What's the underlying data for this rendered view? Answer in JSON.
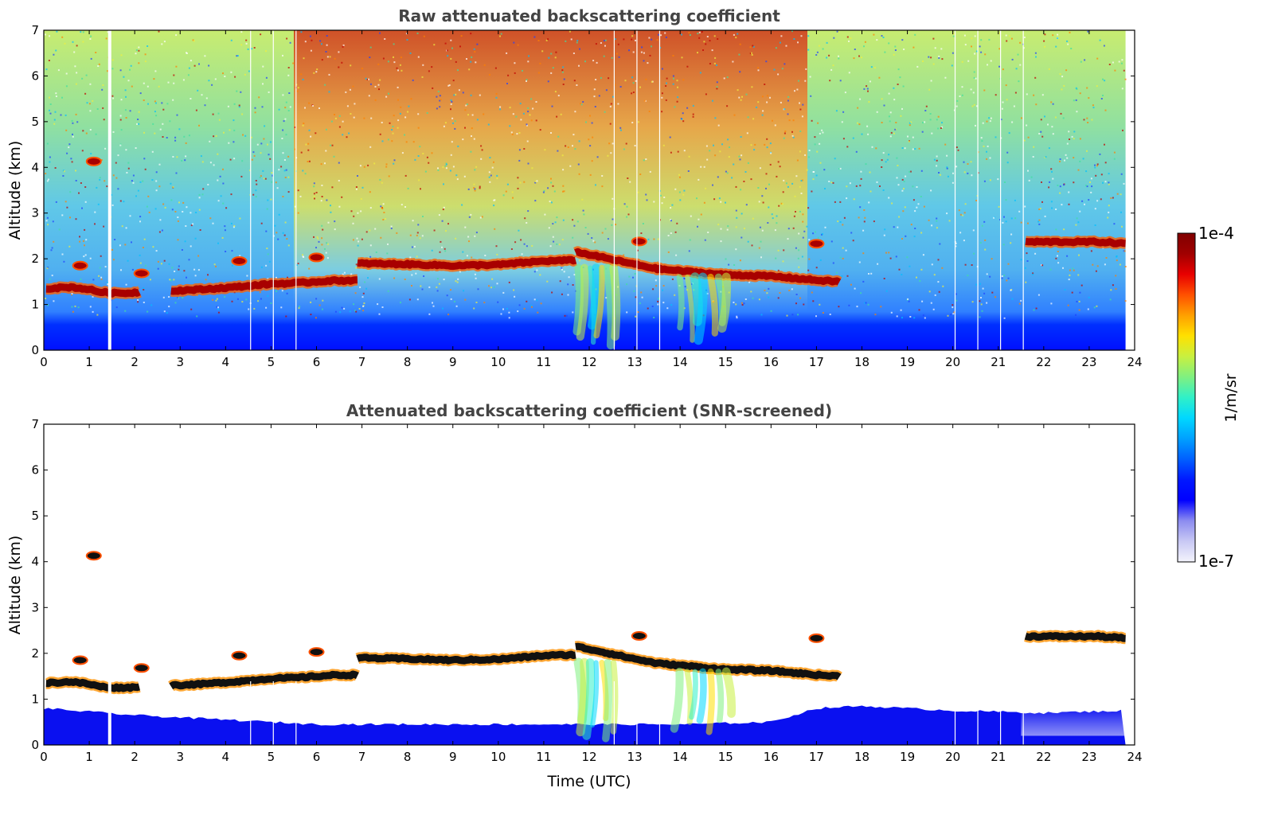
{
  "chart_data": [
    {
      "type": "heatmap",
      "title": "Raw attenuated backscattering coefficient",
      "xlabel": "",
      "ylabel": "Altitude (km)",
      "xlim": [
        0,
        24
      ],
      "ylim": [
        0,
        7
      ],
      "x_ticks": [
        "0",
        "1",
        "2",
        "3",
        "4",
        "5",
        "6",
        "7",
        "8",
        "9",
        "10",
        "11",
        "12",
        "13",
        "14",
        "15",
        "16",
        "17",
        "18",
        "19",
        "20",
        "21",
        "22",
        "23",
        "24"
      ],
      "y_ticks": [
        "0",
        "1",
        "2",
        "3",
        "4",
        "5",
        "6",
        "7"
      ],
      "data_gaps_hours": [
        1.45,
        4.55,
        5.05,
        5.55,
        12.55,
        13.05,
        13.55,
        20.05,
        20.55,
        21.05,
        21.55
      ],
      "cloud_layers": [
        {
          "x": [
            0.05,
            0.6,
            1.0,
            1.2,
            1.5,
            1.85,
            2.1
          ],
          "y": [
            1.35,
            1.38,
            1.33,
            1.28,
            1.25,
            1.25,
            1.27
          ]
        },
        {
          "x": [
            2.8,
            3.5,
            4.2,
            5.0,
            5.6,
            6.3,
            6.9
          ],
          "y": [
            1.3,
            1.33,
            1.38,
            1.45,
            1.47,
            1.52,
            1.53
          ]
        },
        {
          "x": [
            6.9,
            8.0,
            9.0,
            10.0,
            11.0,
            11.7
          ],
          "y": [
            1.9,
            1.88,
            1.85,
            1.87,
            1.95,
            1.97
          ]
        },
        {
          "x": [
            11.7,
            12.2,
            12.8,
            13.5,
            14.2,
            15.0,
            16.0,
            17.0,
            17.5
          ],
          "y": [
            2.15,
            2.05,
            1.92,
            1.78,
            1.72,
            1.65,
            1.62,
            1.53,
            1.5
          ]
        },
        {
          "x": [
            21.6,
            22.5,
            23.2,
            23.8
          ],
          "y": [
            2.37,
            2.37,
            2.37,
            2.33
          ]
        }
      ],
      "isolated_clouds": [
        {
          "x": 1.1,
          "y": 4.13
        },
        {
          "x": 0.8,
          "y": 1.85
        },
        {
          "x": 2.15,
          "y": 1.68
        },
        {
          "x": 4.3,
          "y": 1.95
        },
        {
          "x": 6.0,
          "y": 2.03
        },
        {
          "x": 13.1,
          "y": 2.38
        },
        {
          "x": 17.0,
          "y": 2.33
        }
      ],
      "precipitation_fallstreaks": [
        {
          "x_start": 11.7,
          "x_end": 12.6,
          "top": 1.8,
          "bottom": 0.1
        },
        {
          "x_start": 13.9,
          "x_end": 15.1,
          "top": 1.6,
          "bottom": 0.2
        }
      ],
      "colorscale": {
        "min": "1e-7",
        "max": "1e-4",
        "label": "1/m/sr",
        "log": true
      }
    },
    {
      "type": "heatmap",
      "title": "Attenuated backscattering coefficient (SNR-screened)",
      "xlabel": "Time (UTC)",
      "ylabel": "Altitude (km)",
      "xlim": [
        0,
        24
      ],
      "ylim": [
        0,
        7
      ],
      "x_ticks": [
        "0",
        "1",
        "2",
        "3",
        "4",
        "5",
        "6",
        "7",
        "8",
        "9",
        "10",
        "11",
        "12",
        "13",
        "14",
        "15",
        "16",
        "17",
        "18",
        "19",
        "20",
        "21",
        "22",
        "23",
        "24"
      ],
      "y_ticks": [
        "0",
        "1",
        "2",
        "3",
        "4",
        "5",
        "6",
        "7"
      ],
      "boundary_layer_top_km": {
        "x": [
          0,
          2,
          4,
          6,
          8,
          10,
          12,
          14,
          16,
          17,
          18,
          20,
          22,
          23.8
        ],
        "y": [
          0.8,
          0.65,
          0.55,
          0.45,
          0.45,
          0.45,
          0.45,
          0.45,
          0.5,
          0.8,
          0.85,
          0.75,
          0.7,
          0.75
        ]
      }
    }
  ],
  "colorbar": {
    "max_label": "1e-4",
    "min_label": "1e-7",
    "unit_label": "1/m/sr",
    "stops": [
      "#f4f4fc",
      "#c8c8f4",
      "#8c8cf0",
      "#0000ff",
      "#0018ff",
      "#0060ff",
      "#00a0ff",
      "#00d8ff",
      "#30f0c8",
      "#80f080",
      "#c8f040",
      "#ffe000",
      "#ffa000",
      "#ff5000",
      "#e80000",
      "#a00000",
      "#800000"
    ]
  }
}
